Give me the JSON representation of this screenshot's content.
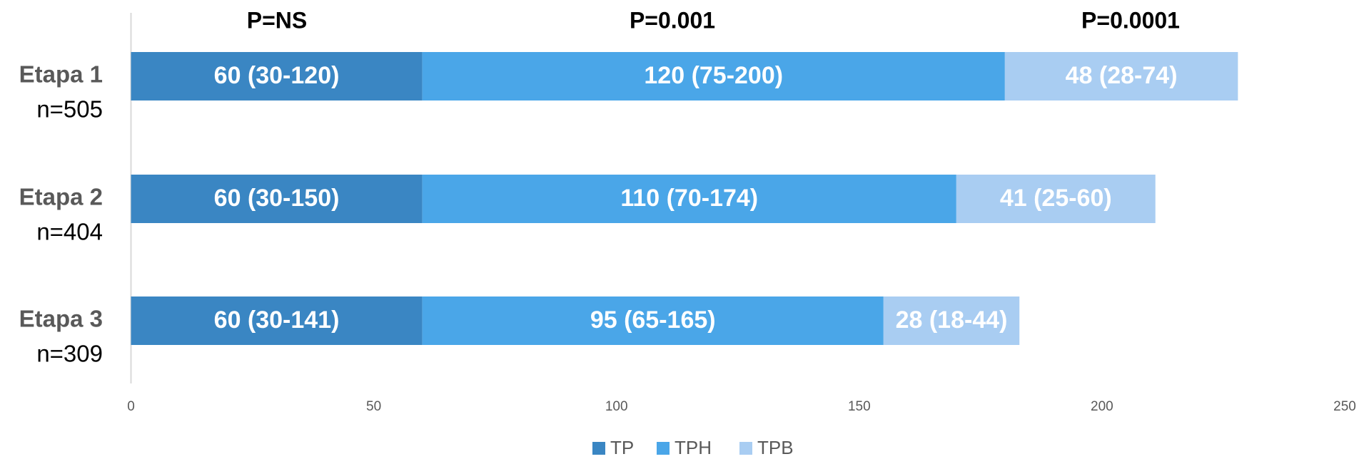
{
  "chart_data": {
    "type": "stacked_bar_horizontal",
    "categories": [
      "Etapa 1",
      "Etapa 2",
      "Etapa 3"
    ],
    "category_sublabels": [
      "n=505",
      "n=404",
      "n=309"
    ],
    "series": [
      {
        "name": "TP",
        "color": "#3a86c3",
        "values": [
          60,
          60,
          60
        ],
        "value_labels": [
          "60 (30-120)",
          "60 (30-150)",
          "60 (30-141)"
        ]
      },
      {
        "name": "TPH",
        "color": "#4aa6e8",
        "values": [
          120,
          110,
          95
        ],
        "value_labels": [
          "120 (75-200)",
          "110 (70-174)",
          "95 (65-165)"
        ]
      },
      {
        "name": "TPB",
        "color": "#a9cdf2",
        "values": [
          48,
          41,
          28
        ],
        "value_labels": [
          "48 (28-74)",
          "41 (25-60)",
          "28 (18-44)"
        ]
      }
    ],
    "annotations": [
      "P=NS",
      "P=0.001",
      "P=0.0001"
    ],
    "xlim": [
      0,
      250
    ],
    "xticks": [
      0,
      50,
      100,
      150,
      200,
      250
    ],
    "legend": "bottom"
  }
}
